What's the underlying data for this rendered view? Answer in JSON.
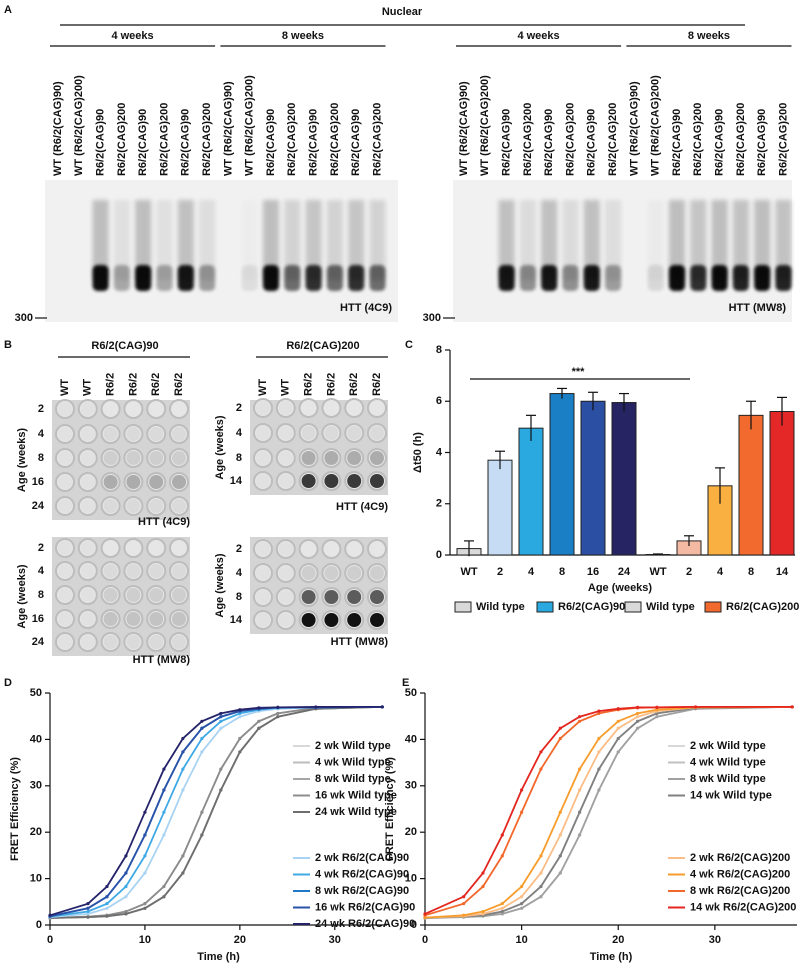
{
  "panel_a": {
    "letter": "A",
    "title": "Nuclear",
    "groups": [
      "4 weeks",
      "8 weeks"
    ],
    "lanes": [
      "WT (R6/2(CAG)90)",
      "WT (R6/2(CAG)200)",
      "R6/2(CAG)90",
      "R6/2(CAG)200",
      "R6/2(CAG)90",
      "R6/2(CAG)200",
      "R6/2(CAG)90",
      "R6/2(CAG)200",
      "WT (R6/2(CAG)90)",
      "WT (R6/2(CAG)200)",
      "R6/2(CAG)90",
      "R6/2(CAG)200",
      "R6/2(CAG)90",
      "R6/2(CAG)200",
      "R6/2(CAG)90",
      "R6/2(CAG)200"
    ],
    "marker": "300",
    "antibodies": [
      "HTT (4C9)",
      "HTT (MW8)"
    ]
  },
  "panel_b": {
    "letter": "B",
    "age_label": "Age (weeks)",
    "columns": [
      "WT",
      "WT",
      "R6/2",
      "R6/2",
      "R6/2",
      "R6/2"
    ],
    "genotypes": [
      {
        "name": "R6/2(CAG)90",
        "rows": [
          2,
          4,
          8,
          16,
          24
        ]
      },
      {
        "name": "R6/2(CAG)200",
        "rows": [
          2,
          4,
          8,
          14
        ]
      }
    ],
    "antibodies": [
      "HTT (4C9)",
      "HTT (MW8)"
    ]
  },
  "chart_data": [
    {
      "type": "bar",
      "letter": "C",
      "ylabel": "Δt50 (h)",
      "xlabel": "Age (weeks)",
      "annotation": "***",
      "categories": [
        "WT",
        "2",
        "4",
        "8",
        "16",
        "24",
        "WT",
        "2",
        "4",
        "8",
        "14"
      ],
      "values": [
        0.25,
        3.7,
        4.95,
        6.3,
        6.0,
        5.95,
        0.02,
        0.55,
        2.7,
        5.45,
        5.6
      ],
      "errors": [
        0.3,
        0.35,
        0.5,
        0.2,
        0.35,
        0.35,
        0.02,
        0.2,
        0.7,
        0.55,
        0.55
      ],
      "colors": [
        "#d9d9d9",
        "#c6dcf5",
        "#2aa9e0",
        "#1a7fc4",
        "#2a4fa3",
        "#262463",
        "#d9d9d9",
        "#f4b9a3",
        "#f9b040",
        "#f26a2e",
        "#e42727"
      ],
      "ylim": [
        0,
        8
      ],
      "yticks": [
        0,
        2,
        4,
        6,
        8
      ],
      "legend": [
        {
          "name": "Wild type",
          "color": "#d9d9d9"
        },
        {
          "name": "R6/2(CAG)90",
          "color": "#2aa9e0"
        },
        {
          "name": "Wild type",
          "color": "#d9d9d9"
        },
        {
          "name": "R6/2(CAG)200",
          "color": "#f26a2e"
        }
      ]
    },
    {
      "type": "line",
      "letter": "D",
      "xlabel": "Time (h)",
      "ylabel": "FRET Efficiency (%)",
      "x": [
        0,
        4,
        6,
        8,
        10,
        12,
        14,
        16,
        18,
        20,
        22,
        24,
        28,
        35
      ],
      "xlim": [
        0,
        35.5
      ],
      "xticks": [
        0,
        10,
        20,
        30
      ],
      "ylim": [
        0,
        50
      ],
      "yticks": [
        0,
        10,
        20,
        30,
        40,
        50
      ],
      "series": [
        {
          "name": "2 wk Wild type",
          "color": "#d8d8d8",
          "values": [
            1.5,
            1.7,
            1.9,
            2.4,
            3.6,
            6.1,
            11.2,
            19.4,
            29.1,
            37.3,
            42.4,
            44.9,
            46.6,
            47.0
          ]
        },
        {
          "name": "4 wk Wild type",
          "color": "#bdbdbd",
          "values": [
            1.5,
            1.8,
            2.1,
            2.9,
            4.6,
            8.3,
            14.9,
            24.3,
            33.6,
            40.2,
            43.9,
            45.6,
            46.8,
            47.0
          ]
        },
        {
          "name": "8 wk Wild type",
          "color": "#a6a6a6",
          "values": [
            1.5,
            1.7,
            1.9,
            2.4,
            3.6,
            6.1,
            11.2,
            19.4,
            29.1,
            37.3,
            42.4,
            44.9,
            46.6,
            47.0
          ]
        },
        {
          "name": "16 wk Wild type",
          "color": "#8c8c8c",
          "values": [
            1.5,
            1.8,
            2.1,
            2.9,
            4.6,
            8.3,
            14.9,
            24.3,
            33.6,
            40.2,
            43.9,
            45.6,
            46.8,
            47.0
          ]
        },
        {
          "name": "24 wk Wild type",
          "color": "#6e6e6e",
          "values": [
            1.5,
            1.7,
            1.9,
            2.4,
            3.6,
            6.1,
            11.2,
            19.4,
            29.1,
            37.3,
            42.4,
            44.9,
            46.6,
            47.0
          ]
        },
        {
          "name": "2 wk R6/2(CAG)90",
          "color": "#a9d3f2",
          "values": [
            1.7,
            2.4,
            3.6,
            6.1,
            11.2,
            19.4,
            29.1,
            37.3,
            42.4,
            44.9,
            46.1,
            46.6,
            46.9,
            47.0
          ]
        },
        {
          "name": "4 wk R6/2(CAG)90",
          "color": "#3fa9e6",
          "values": [
            1.8,
            2.9,
            4.6,
            8.3,
            14.9,
            24.3,
            33.6,
            40.2,
            43.9,
            45.6,
            46.4,
            46.8,
            46.9,
            47.0
          ]
        },
        {
          "name": "8 wk R6/2(CAG)90",
          "color": "#1f78c8",
          "values": [
            1.9,
            3.6,
            6.1,
            11.2,
            19.4,
            29.1,
            37.3,
            42.4,
            44.9,
            46.1,
            46.6,
            46.9,
            46.9,
            47.0
          ]
        },
        {
          "name": "16 wk R6/2(CAG)90",
          "color": "#2a52a8",
          "values": [
            1.9,
            3.6,
            6.1,
            11.2,
            19.4,
            29.1,
            37.3,
            42.4,
            44.9,
            46.1,
            46.6,
            46.9,
            46.9,
            47.0
          ]
        },
        {
          "name": "24 wk R6/2(CAG)90",
          "color": "#25236a",
          "values": [
            2.1,
            4.6,
            8.3,
            14.9,
            24.3,
            33.6,
            40.2,
            43.9,
            45.6,
            46.4,
            46.8,
            46.9,
            47.0,
            47.0
          ]
        }
      ]
    },
    {
      "type": "line",
      "letter": "E",
      "xlabel": "Time (h)",
      "ylabel": "FRET Efficiency (%)",
      "x": [
        0,
        4,
        6,
        8,
        10,
        12,
        14,
        16,
        18,
        20,
        22,
        24,
        28,
        38
      ],
      "xlim": [
        0,
        38.5
      ],
      "xticks": [
        0,
        10,
        20,
        30
      ],
      "ylim": [
        0,
        50
      ],
      "yticks": [
        0,
        10,
        20,
        30,
        40,
        50
      ],
      "series": [
        {
          "name": "2 wk Wild type",
          "color": "#d8d8d8",
          "values": [
            1.5,
            1.7,
            1.9,
            2.4,
            3.6,
            6.1,
            11.2,
            19.4,
            29.1,
            37.3,
            42.4,
            44.9,
            46.6,
            47.0
          ]
        },
        {
          "name": "4 wk Wild type",
          "color": "#c0c0c0",
          "values": [
            1.5,
            1.8,
            2.1,
            2.9,
            4.6,
            8.3,
            14.9,
            24.3,
            33.6,
            40.2,
            43.9,
            45.6,
            46.8,
            47.0
          ]
        },
        {
          "name": "8 wk Wild type",
          "color": "#a0a0a0",
          "values": [
            1.5,
            1.7,
            1.9,
            2.4,
            3.6,
            6.1,
            11.2,
            19.4,
            29.1,
            37.3,
            42.4,
            44.9,
            46.6,
            47.0
          ]
        },
        {
          "name": "14 wk Wild type",
          "color": "#808080",
          "values": [
            1.5,
            1.8,
            2.1,
            2.9,
            4.6,
            8.3,
            14.9,
            24.3,
            33.6,
            40.2,
            43.9,
            45.6,
            46.8,
            47.0
          ]
        },
        {
          "name": "2 wk R6/2(CAG)200",
          "color": "#fbbd86",
          "values": [
            1.6,
            1.9,
            2.4,
            3.6,
            6.1,
            11.2,
            19.4,
            29.1,
            37.3,
            42.4,
            44.9,
            46.1,
            46.9,
            47.0
          ]
        },
        {
          "name": "4 wk R6/2(CAG)200",
          "color": "#f79d2d",
          "values": [
            1.6,
            2.1,
            2.9,
            4.6,
            8.3,
            14.9,
            24.3,
            33.6,
            40.2,
            43.9,
            45.6,
            46.4,
            46.9,
            47.0
          ]
        },
        {
          "name": "8 wk R6/2(CAG)200",
          "color": "#f2682b",
          "values": [
            2.1,
            4.6,
            8.3,
            14.9,
            24.3,
            33.6,
            40.2,
            43.9,
            45.6,
            46.4,
            46.8,
            46.9,
            47.0,
            47.0
          ]
        },
        {
          "name": "14 wk R6/2(CAG)200",
          "color": "#e3261f",
          "values": [
            2.4,
            6.1,
            11.2,
            19.4,
            29.1,
            37.3,
            42.4,
            44.9,
            46.1,
            46.6,
            46.9,
            46.9,
            47.0,
            47.0
          ]
        }
      ]
    }
  ]
}
